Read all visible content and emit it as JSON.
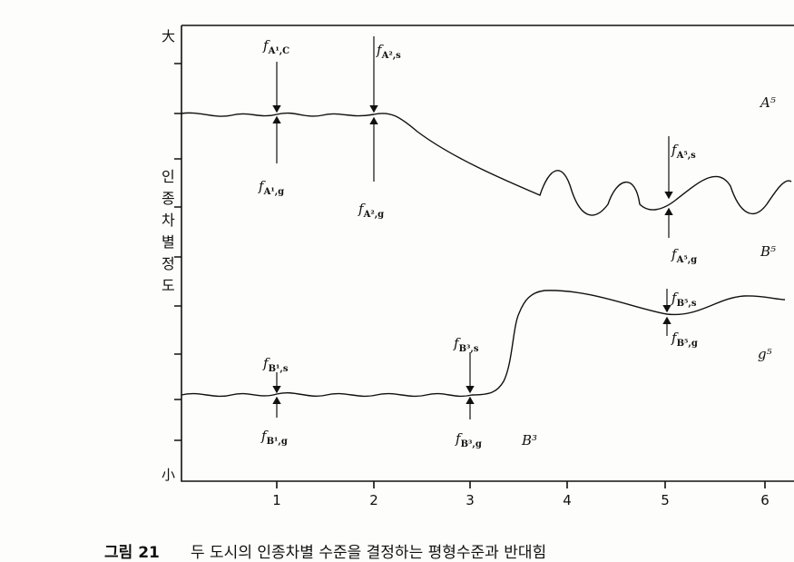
{
  "axis": {
    "top": "大",
    "bottom": "小",
    "y_label": "인종차별정도",
    "x_ticks": [
      "1",
      "2",
      "3",
      "4",
      "5",
      "6"
    ]
  },
  "forces": [
    {
      "symbol": "f",
      "subscript": "A¹,C"
    },
    {
      "symbol": "f",
      "subscript": "A¹,g"
    },
    {
      "symbol": "f",
      "subscript": "A²,s"
    },
    {
      "symbol": "f",
      "subscript": "A²,g"
    },
    {
      "symbol": "f",
      "subscript": "A⁵,s"
    },
    {
      "symbol": "f",
      "subscript": "A⁵,g"
    },
    {
      "symbol": "f",
      "subscript": "B¹,s"
    },
    {
      "symbol": "f",
      "subscript": "B¹,g"
    },
    {
      "symbol": "f",
      "subscript": "B³,s"
    },
    {
      "symbol": "f",
      "subscript": "B³,g"
    },
    {
      "symbol": "f",
      "subscript": "B⁵,s"
    },
    {
      "symbol": "f",
      "subscript": "B⁵,g"
    }
  ],
  "curve_labels": [
    "A⁵",
    "B⁵",
    "g⁵",
    "B³"
  ],
  "caption": {
    "number": "그림 21",
    "text": "두 도시의 인종차별 수준을 결정하는 평형수준과 반대힘"
  }
}
